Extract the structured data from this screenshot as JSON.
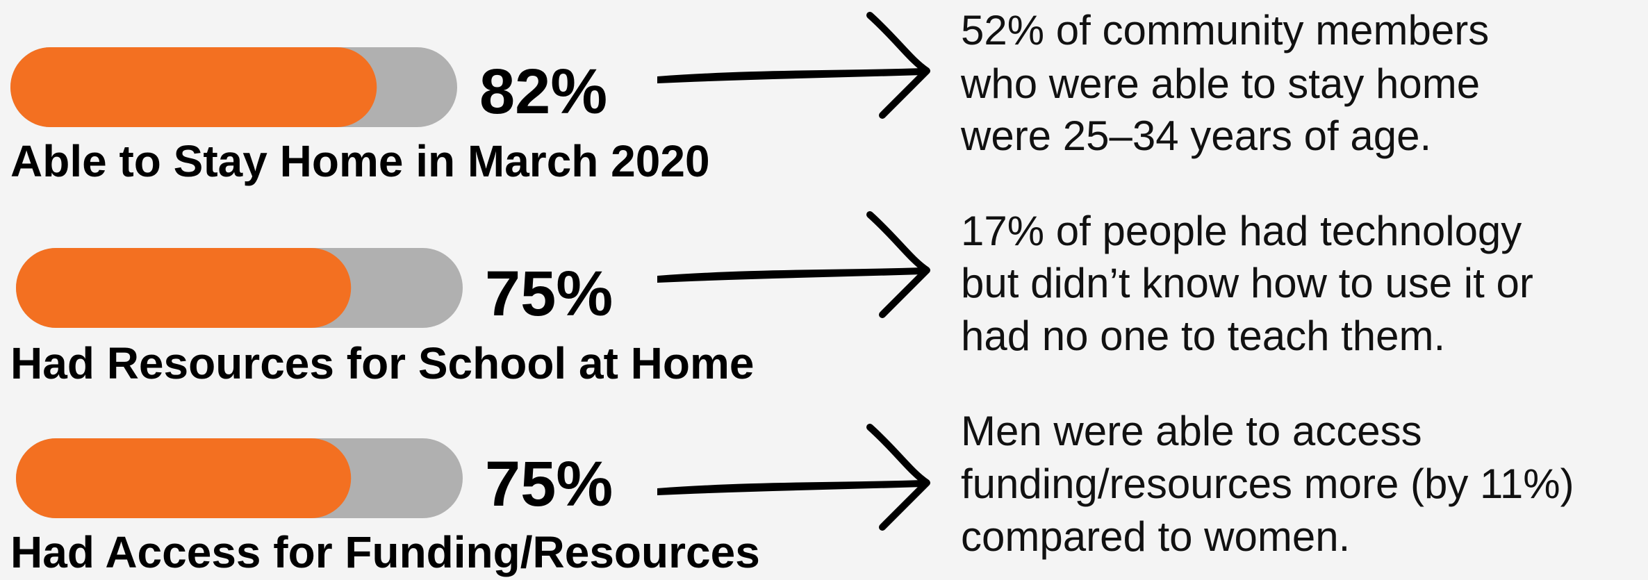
{
  "items": [
    {
      "value": 82,
      "value_label": "82%",
      "label": "Able to Stay Home in March 2020",
      "note": [
        "52% of community members",
        "who were able to stay home",
        "were 25–34 years of age."
      ]
    },
    {
      "value": 75,
      "value_label": "75%",
      "label": "Had Resources for School at Home",
      "note": [
        "17% of people had technology",
        "but didn’t know how to use it or",
        "had no one to teach them."
      ]
    },
    {
      "value": 75,
      "value_label": "75%",
      "label": "Had Access for Funding/Resources",
      "note": [
        "Men were able to access",
        "funding/resources more (by 11%)",
        "compared to women."
      ]
    }
  ]
}
